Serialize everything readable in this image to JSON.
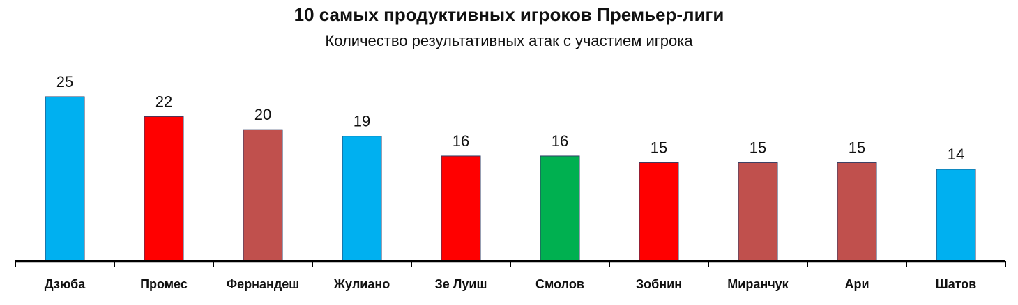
{
  "chart_data": {
    "type": "bar",
    "title": "10 самых продуктивных игроков Премьер-лиги",
    "subtitle": "Количество результативных атак с участием игрока",
    "categories": [
      "Дзюба",
      "Промес",
      "Фернандеш",
      "Жулиано",
      "Зе Луиш",
      "Смолов",
      "Зобнин",
      "Миранчук",
      "Ари",
      "Шатов"
    ],
    "values": [
      25,
      22,
      20,
      19,
      16,
      16,
      15,
      15,
      15,
      14
    ],
    "colors": [
      "#00B0F0",
      "#FF0000",
      "#C0504D",
      "#00B0F0",
      "#FF0000",
      "#00B050",
      "#FF0000",
      "#C0504D",
      "#C0504D",
      "#00B0F0"
    ],
    "ylim": [
      0,
      25
    ],
    "grid": false,
    "legend": "none",
    "xlabel": "",
    "ylabel": ""
  }
}
